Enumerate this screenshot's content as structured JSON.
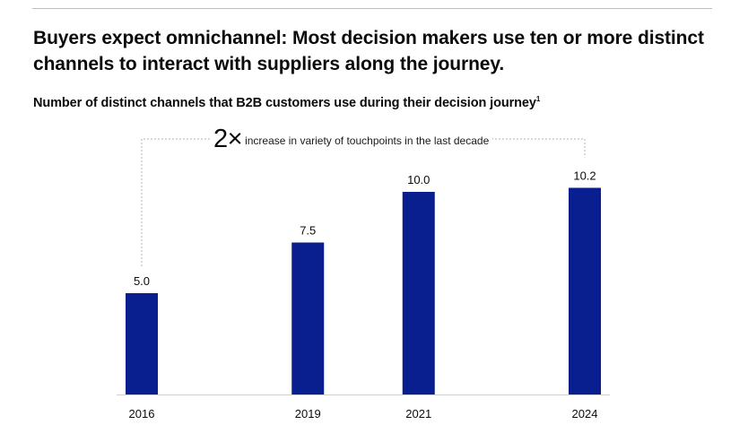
{
  "header": {
    "headline": "Buyers expect omnichannel: Most decision makers use ten or more distinct channels to interact with suppliers along the journey.",
    "subtitle": "Number of distinct channels that B2B customers use during their decision journey",
    "subtitle_footnote_marker": "1"
  },
  "annotation": {
    "multiplier": "2×",
    "text": "increase in variety of touchpoints in the last decade"
  },
  "colors": {
    "bar": "#0a1f8f",
    "axis": "#cfcfcf",
    "bracket": "#b0b0b0",
    "text": "#0b0b0b"
  },
  "chart_data": {
    "type": "bar",
    "title": "Number of distinct channels that B2B customers use during their decision journey",
    "categories": [
      "2016",
      "2019",
      "2021",
      "2024"
    ],
    "values": [
      5.0,
      7.5,
      10.0,
      10.2
    ],
    "value_labels": [
      "5.0",
      "7.5",
      "10.0",
      "10.2"
    ],
    "xlabel": "",
    "ylabel": "",
    "ylim": [
      0,
      12
    ],
    "grid": false,
    "x_axis": "time (years)"
  }
}
